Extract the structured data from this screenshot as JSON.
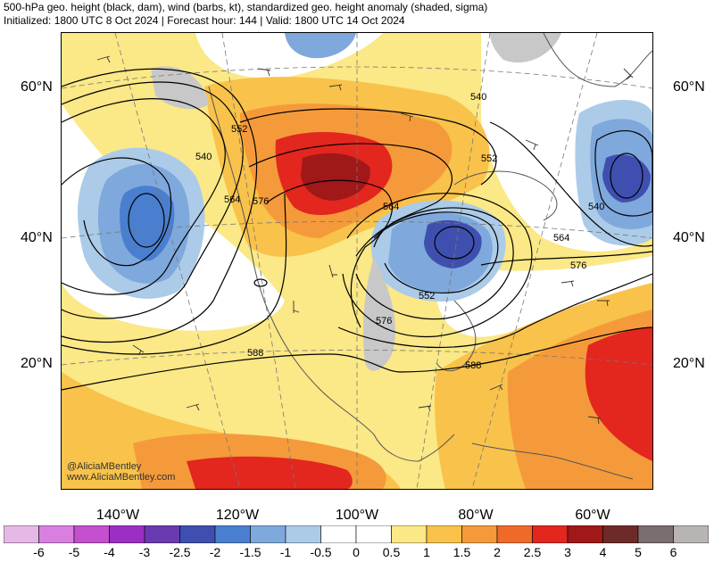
{
  "header": {
    "title": "500-hPa geo. height (black, dam), wind (barbs, kt), standardized geo. height anomaly (shaded, sigma)",
    "subtitle": "Initialized: 1800 UTC 8 Oct 2024 | Forecast hour: 144 | Valid: 1800 UTC 14 Oct 2024"
  },
  "map": {
    "lat_labels": [
      "60°N",
      "40°N",
      "20°N"
    ],
    "lon_labels": [
      "140°W",
      "120°W",
      "100°W",
      "80°W",
      "60°W"
    ],
    "contour_labels": [
      "540",
      "552",
      "540",
      "564",
      "576",
      "564",
      "552",
      "540",
      "564",
      "576",
      "552",
      "576",
      "588",
      "588"
    ],
    "watermark": [
      "@AliciaMBentley",
      "www.AliciaMBentley.com"
    ]
  },
  "colorbar": {
    "levels": [
      "-6",
      "-5",
      "-4",
      "-3",
      "-2.5",
      "-2",
      "-1.5",
      "-1",
      "-0.5",
      "0",
      "0.5",
      "1",
      "1.5",
      "2",
      "2.5",
      "3",
      "4",
      "5",
      "6"
    ],
    "colors": [
      "#e6b8e8",
      "#d97fdf",
      "#c44fcf",
      "#9b2fc4",
      "#6a3ab0",
      "#3f4fb0",
      "#4a7fcf",
      "#7fa8dc",
      "#abcbe8",
      "#ffffff",
      "#ffffff",
      "#fbe886",
      "#f9c24a",
      "#f59a3a",
      "#ef6a2a",
      "#e3261e",
      "#a01818",
      "#6e2a28",
      "#7a6e6e",
      "#b8b4b4"
    ]
  },
  "legend_colors": {
    "ocean_land_gray": "#c8c8c8",
    "contour": "#000000"
  }
}
